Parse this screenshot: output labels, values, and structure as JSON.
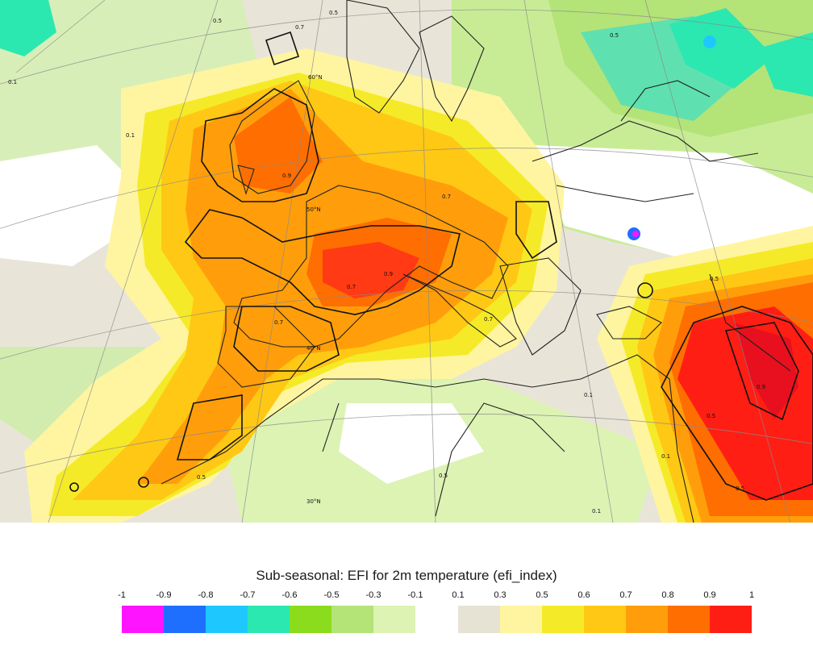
{
  "legend": {
    "title": "Sub-seasonal: EFI for 2m temperature (efi_index)",
    "ticks": [
      "-1",
      "-0.9",
      "-0.8",
      "-0.7",
      "-0.6",
      "-0.5",
      "-0.3",
      "-0.1",
      "0.1",
      "0.3",
      "0.5",
      "0.6",
      "0.7",
      "0.8",
      "0.9",
      "1"
    ],
    "negative_colors": [
      "#ff14ff",
      "#1f6fff",
      "#1ec8ff",
      "#2be8b0",
      "#8cdc1e",
      "#b4e378",
      "#dcf3b4"
    ],
    "positive_colors": [
      "#e6e3d4",
      "#fff5a0",
      "#f5ea28",
      "#ffc814",
      "#ff9e0a",
      "#ff6e00",
      "#ff1e14"
    ]
  },
  "map": {
    "contour_labels": [
      "0.5",
      "0.7",
      "0.5",
      "0.9",
      "0.7",
      "0.9",
      "0.1",
      "0.5",
      "0.9",
      "0.1",
      "0.5",
      "0.7",
      "0.5",
      "0.7",
      "0.7",
      "0.5",
      "0.1",
      "0.5",
      "0.1",
      "0.1",
      "0.5"
    ],
    "latitude_labels": [
      "60°N",
      "50°N",
      "40°N",
      "30°N"
    ]
  }
}
